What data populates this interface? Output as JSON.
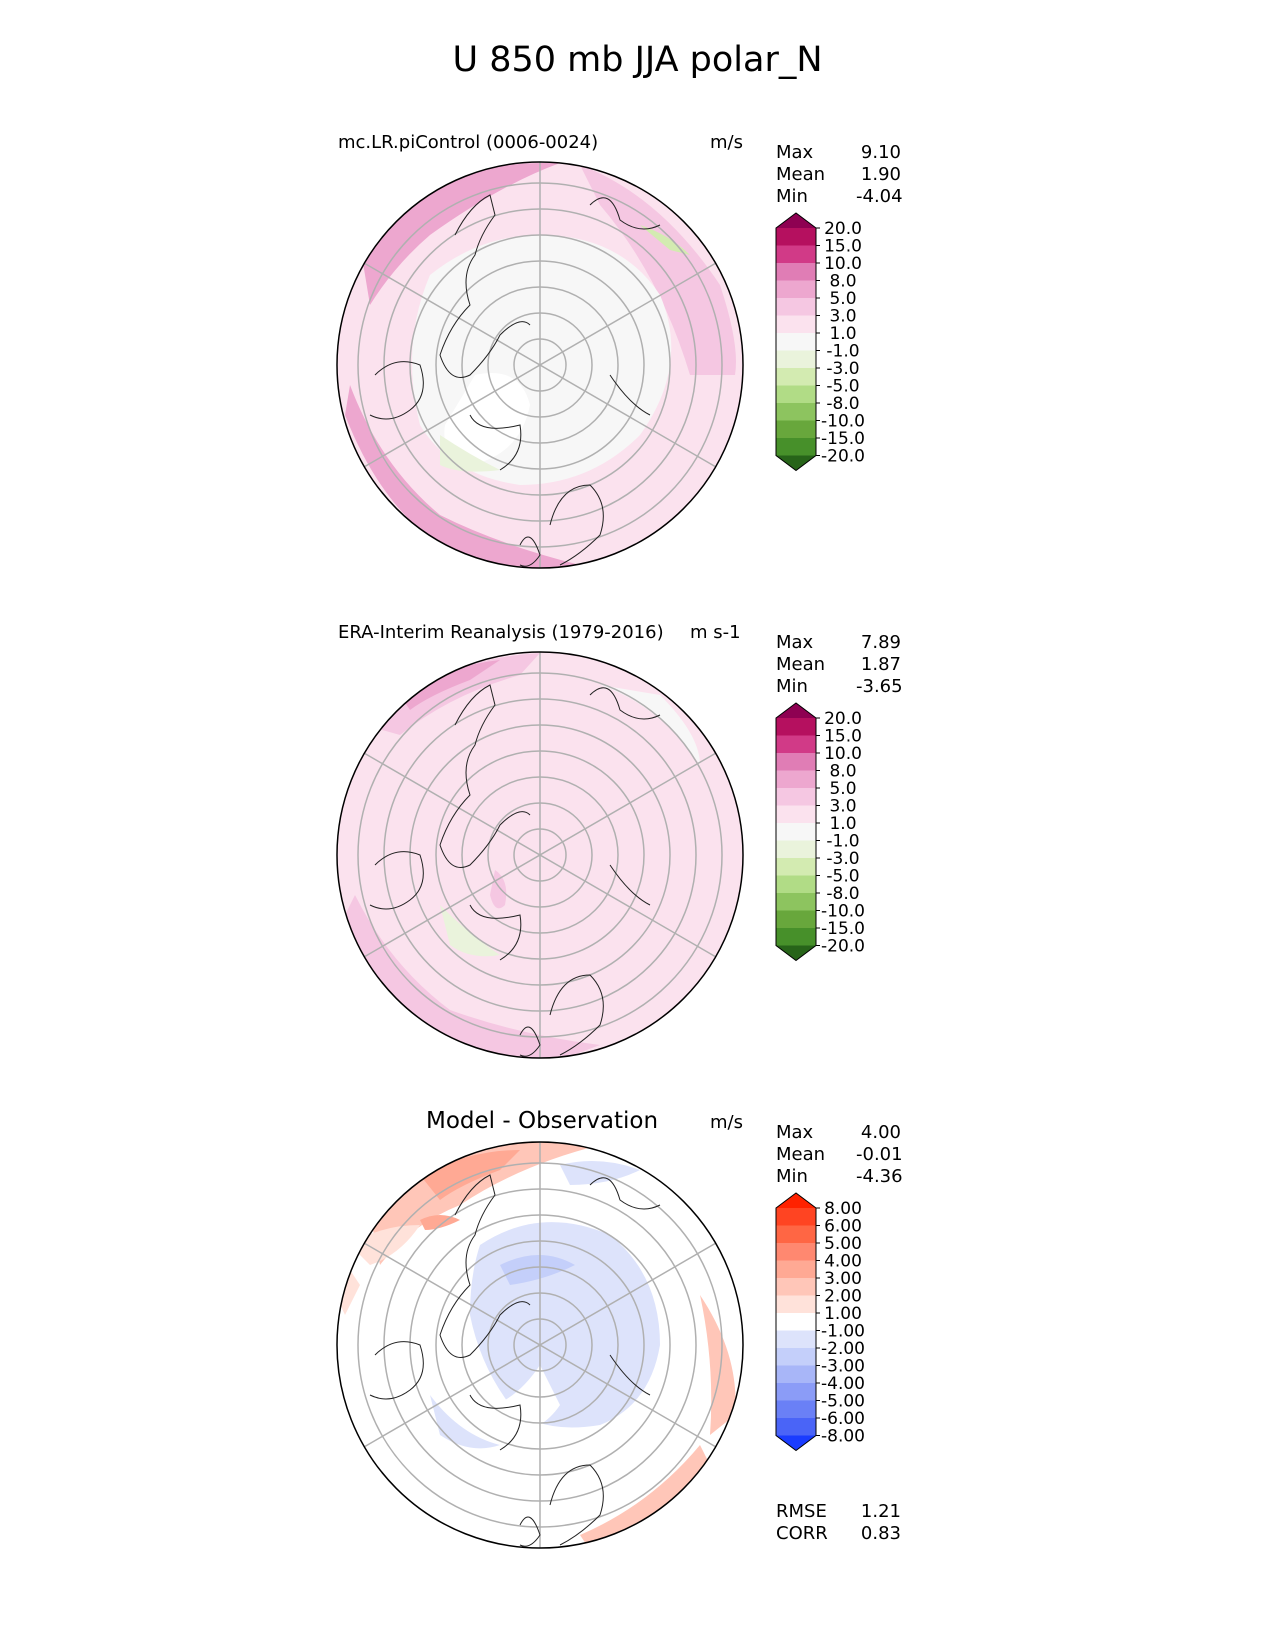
{
  "title": "U 850 mb JJA polar_N",
  "panels": [
    {
      "name": "test",
      "title": "mc.LR.piControl (0006-0024)",
      "units": "m/s",
      "stats": [
        {
          "label": "Max",
          "value": "9.10"
        },
        {
          "label": "Mean",
          "value": "1.90"
        },
        {
          "label": "Min",
          "value": "-4.04"
        }
      ],
      "colorbar_ticks": [
        "20.0",
        "15.0",
        "10.0",
        "8.0",
        "5.0",
        "3.0",
        "1.0",
        "-1.0",
        "-3.0",
        "-5.0",
        "-8.0",
        "-10.0",
        "-15.0",
        "-20.0"
      ],
      "colors": [
        "#8e0152",
        "#b5105f",
        "#d13a87",
        "#e07db5",
        "#eda7cf",
        "#f5c7e2",
        "#fbe2ee",
        "#f7f7f7",
        "#eaf3dc",
        "#d3ebb1",
        "#b1dc86",
        "#8dc45f",
        "#68a73c",
        "#47902a",
        "#276419"
      ]
    },
    {
      "name": "reference",
      "title": "ERA-Interim Reanalysis (1979-2016)",
      "units": "m s-1",
      "stats": [
        {
          "label": "Max",
          "value": "7.89"
        },
        {
          "label": "Mean",
          "value": "1.87"
        },
        {
          "label": "Min",
          "value": "-3.65"
        }
      ],
      "colorbar_ticks": [
        "20.0",
        "15.0",
        "10.0",
        "8.0",
        "5.0",
        "3.0",
        "1.0",
        "-1.0",
        "-3.0",
        "-5.0",
        "-8.0",
        "-10.0",
        "-15.0",
        "-20.0"
      ],
      "colors": [
        "#8e0152",
        "#b5105f",
        "#d13a87",
        "#e07db5",
        "#eda7cf",
        "#f5c7e2",
        "#fbe2ee",
        "#f7f7f7",
        "#eaf3dc",
        "#d3ebb1",
        "#b1dc86",
        "#8dc45f",
        "#68a73c",
        "#47902a",
        "#276419"
      ]
    },
    {
      "name": "diff",
      "title": "Model - Observation",
      "units": "m/s",
      "stats": [
        {
          "label": "Max",
          "value": "4.00"
        },
        {
          "label": "Mean",
          "value": "-0.01"
        },
        {
          "label": "Min",
          "value": "-4.36"
        }
      ],
      "extra_stats": [
        {
          "label": "RMSE",
          "value": "1.21"
        },
        {
          "label": "CORR",
          "value": "0.83"
        }
      ],
      "colorbar_ticks": [
        "8.00",
        "6.00",
        "5.00",
        "4.00",
        "3.00",
        "2.00",
        "1.00",
        "-1.00",
        "-2.00",
        "-3.00",
        "-4.00",
        "-5.00",
        "-6.00",
        "-8.00"
      ],
      "colors": [
        "#ff2200",
        "#ff4422",
        "#ff6644",
        "#ff8870",
        "#ffa994",
        "#ffc6b8",
        "#ffe2da",
        "#ffffff",
        "#dde3fb",
        "#c4cffa",
        "#a8b6f8",
        "#8b9cf7",
        "#6a80f6",
        "#4a64f7",
        "#1a3cff"
      ]
    }
  ],
  "chart_data": {
    "type": "heatmap",
    "projection": "polar stereographic (North)",
    "variable": "U",
    "level": "850 mb",
    "season": "JJA",
    "panels": [
      {
        "title": "mc.LR.piControl (0006-0024)",
        "units": "m/s",
        "max": 9.1,
        "mean": 1.9,
        "min": -4.04
      },
      {
        "title": "ERA-Interim Reanalysis (1979-2016)",
        "units": "m s-1",
        "max": 7.89,
        "mean": 1.87,
        "min": -3.65
      },
      {
        "title": "Model - Observation",
        "units": "m/s",
        "max": 4.0,
        "mean": -0.01,
        "min": -4.36,
        "rmse": 1.21,
        "corr": 0.83
      }
    ],
    "levels_fields": [
      -20,
      -15,
      -10,
      -8,
      -5,
      -3,
      -1,
      1,
      3,
      5,
      8,
      10,
      15,
      20
    ],
    "levels_diff": [
      -8,
      -6,
      -5,
      -4,
      -3,
      -2,
      -1,
      1,
      2,
      3,
      4,
      5,
      6,
      8
    ]
  }
}
